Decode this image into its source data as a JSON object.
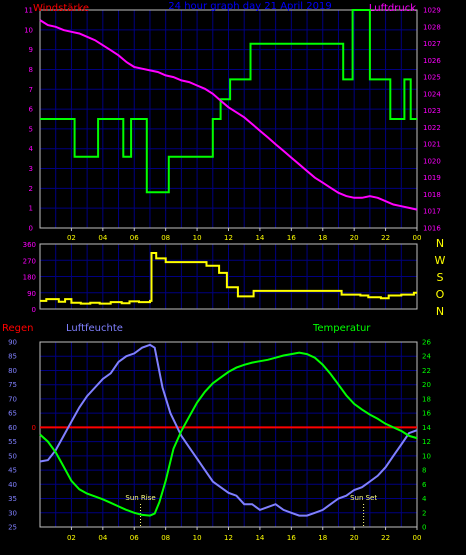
{
  "colors": {
    "background": "#000000",
    "frame": "#c0c0c0",
    "grid": "#000080",
    "wind": "#00ff00",
    "pressure": "#ff00ff",
    "direction": "#ffff00",
    "humidity": "#8080ff",
    "temperature": "#00ff00",
    "rain": "#ff0000",
    "title": "#0000ff",
    "x_ticks": "#ffff00",
    "sun": "#ffff80"
  },
  "chart_data": [
    {
      "type": "line",
      "title": "24 hour graph day  21 April 2019",
      "left_axis_label": "Windstärke",
      "right_axis_label": "Luftdruck",
      "x_ticks": [
        "02",
        "04",
        "06",
        "08",
        "10",
        "12",
        "14",
        "16",
        "18",
        "20",
        "22",
        "00"
      ],
      "y_left_ticks": [
        "0",
        "1",
        "2",
        "3",
        "4",
        "5",
        "6",
        "7",
        "8",
        "9",
        "10",
        "11"
      ],
      "y_right_ticks": [
        "1016",
        "1017",
        "1018",
        "1019",
        "1020",
        "1021",
        "1022",
        "1023",
        "1024",
        "1025",
        "1026",
        "1027",
        "1028",
        "1029"
      ],
      "y_left_range": [
        0,
        11
      ],
      "y_right_range": [
        1016,
        1029
      ],
      "x_range": [
        0,
        24
      ],
      "series": [
        {
          "kind": "step",
          "axis": "left",
          "points": [
            [
              0,
              5.5
            ],
            [
              2.2,
              3.6
            ],
            [
              3.7,
              5.5
            ],
            [
              5.3,
              3.6
            ],
            [
              5.8,
              5.5
            ],
            [
              6.8,
              1.8
            ],
            [
              8.2,
              3.6
            ],
            [
              11.0,
              5.5
            ],
            [
              11.5,
              6.5
            ],
            [
              12.1,
              7.5
            ],
            [
              13.4,
              9.3
            ],
            [
              19.3,
              7.5
            ],
            [
              19.9,
              11.0
            ],
            [
              21.0,
              7.5
            ],
            [
              22.3,
              5.5
            ],
            [
              23.2,
              7.5
            ],
            [
              23.6,
              5.5
            ],
            [
              24,
              5.5
            ]
          ]
        },
        {
          "kind": "line",
          "axis": "right",
          "points": [
            [
              0,
              1028.4
            ],
            [
              0.5,
              1028.1
            ],
            [
              1,
              1028.0
            ],
            [
              1.5,
              1027.8
            ],
            [
              2,
              1027.7
            ],
            [
              2.5,
              1027.6
            ],
            [
              3,
              1027.4
            ],
            [
              3.5,
              1027.2
            ],
            [
              4,
              1026.9
            ],
            [
              4.5,
              1026.6
            ],
            [
              5,
              1026.3
            ],
            [
              5.5,
              1025.9
            ],
            [
              6,
              1025.6
            ],
            [
              6.5,
              1025.5
            ],
            [
              7,
              1025.4
            ],
            [
              7.5,
              1025.3
            ],
            [
              8,
              1025.1
            ],
            [
              8.5,
              1025.0
            ],
            [
              9,
              1024.8
            ],
            [
              9.5,
              1024.7
            ],
            [
              10,
              1024.5
            ],
            [
              10.5,
              1024.3
            ],
            [
              11,
              1024.0
            ],
            [
              11.5,
              1023.6
            ],
            [
              12,
              1023.2
            ],
            [
              12.5,
              1022.9
            ],
            [
              13,
              1022.6
            ],
            [
              13.5,
              1022.2
            ],
            [
              14,
              1021.8
            ],
            [
              14.5,
              1021.4
            ],
            [
              15,
              1021.0
            ],
            [
              15.5,
              1020.6
            ],
            [
              16,
              1020.2
            ],
            [
              16.5,
              1019.8
            ],
            [
              17,
              1019.4
            ],
            [
              17.5,
              1019.0
            ],
            [
              18,
              1018.7
            ],
            [
              18.5,
              1018.4
            ],
            [
              19,
              1018.1
            ],
            [
              19.5,
              1017.9
            ],
            [
              20,
              1017.8
            ],
            [
              20.5,
              1017.8
            ],
            [
              21,
              1017.9
            ],
            [
              21.5,
              1017.8
            ],
            [
              22,
              1017.6
            ],
            [
              22.5,
              1017.4
            ],
            [
              23,
              1017.3
            ],
            [
              23.5,
              1017.2
            ],
            [
              24,
              1017.1
            ]
          ]
        }
      ]
    },
    {
      "type": "line",
      "title": "",
      "y_left_ticks": [
        "0",
        "90",
        "180",
        "270",
        "360"
      ],
      "y_range": [
        0,
        360
      ],
      "x_range": [
        0,
        24
      ],
      "right_labels": [
        "N",
        "W",
        "S",
        "O",
        "N"
      ],
      "series": [
        {
          "kind": "step",
          "axis": "left",
          "points": [
            [
              0,
              45
            ],
            [
              0.4,
              55
            ],
            [
              1.2,
              40
            ],
            [
              1.6,
              55
            ],
            [
              2.0,
              35
            ],
            [
              2.6,
              30
            ],
            [
              3.2,
              35
            ],
            [
              3.8,
              30
            ],
            [
              4.5,
              38
            ],
            [
              5.2,
              32
            ],
            [
              5.7,
              42
            ],
            [
              6.3,
              38
            ],
            [
              7.0,
              45
            ],
            [
              7.1,
              310
            ],
            [
              7.4,
              280
            ],
            [
              8.0,
              260
            ],
            [
              10.6,
              240
            ],
            [
              11.4,
              200
            ],
            [
              11.9,
              120
            ],
            [
              12.6,
              70
            ],
            [
              13.6,
              100
            ],
            [
              19.2,
              80
            ],
            [
              20.4,
              75
            ],
            [
              20.9,
              65
            ],
            [
              21.7,
              60
            ],
            [
              22.2,
              75
            ],
            [
              23.0,
              80
            ],
            [
              23.8,
              90
            ],
            [
              24,
              90
            ]
          ]
        }
      ]
    },
    {
      "type": "line",
      "title": "",
      "left_axis_label": "Regen",
      "mid_axis_label": "Luftfeuchte",
      "right_axis_label": "Temperatur",
      "x_ticks": [
        "02",
        "04",
        "06",
        "08",
        "10",
        "12",
        "14",
        "16",
        "18",
        "20",
        "22",
        "00"
      ],
      "y_hum_ticks": [
        "25",
        "30",
        "35",
        "40",
        "45",
        "50",
        "55",
        "60",
        "65",
        "70",
        "75",
        "80",
        "85",
        "90"
      ],
      "y_temp_ticks": [
        "0",
        "2",
        "4",
        "6",
        "8",
        "10",
        "12",
        "14",
        "16",
        "18",
        "20",
        "22",
        "24",
        "26"
      ],
      "rain_tick": "0",
      "hum_range": [
        25,
        90
      ],
      "temp_range": [
        0,
        26
      ],
      "rain_level": 14,
      "x_range": [
        0,
        24
      ],
      "annotations": [
        {
          "text": "Sun Rise",
          "x": 6.4
        },
        {
          "text": "Sun Set",
          "x": 20.6
        }
      ],
      "series": [
        {
          "name": "Luftfeuchte",
          "axis": "humidity",
          "points": [
            [
              0,
              48
            ],
            [
              0.5,
              48.5
            ],
            [
              1,
              52
            ],
            [
              1.5,
              57
            ],
            [
              2,
              62
            ],
            [
              2.5,
              67
            ],
            [
              3,
              71
            ],
            [
              3.5,
              74
            ],
            [
              4,
              77
            ],
            [
              4.5,
              79
            ],
            [
              5,
              83
            ],
            [
              5.5,
              85
            ],
            [
              6,
              86
            ],
            [
              6.5,
              88
            ],
            [
              7,
              89
            ],
            [
              7.3,
              88
            ],
            [
              7.8,
              74
            ],
            [
              8.3,
              65
            ],
            [
              9,
              57
            ],
            [
              9.5,
              53
            ],
            [
              10,
              49
            ],
            [
              10.5,
              45
            ],
            [
              11,
              41
            ],
            [
              11.5,
              39
            ],
            [
              12,
              37
            ],
            [
              12.5,
              36
            ],
            [
              13,
              33
            ],
            [
              13.5,
              33
            ],
            [
              14,
              31
            ],
            [
              14.5,
              32
            ],
            [
              15,
              33
            ],
            [
              15.5,
              31
            ],
            [
              16,
              30
            ],
            [
              16.5,
              29
            ],
            [
              17,
              29
            ],
            [
              17.5,
              30
            ],
            [
              18,
              31
            ],
            [
              18.5,
              33
            ],
            [
              19,
              35
            ],
            [
              19.5,
              36
            ],
            [
              20,
              38
            ],
            [
              20.5,
              39
            ],
            [
              21,
              41
            ],
            [
              21.5,
              43
            ],
            [
              22,
              46
            ],
            [
              22.5,
              50
            ],
            [
              23,
              54
            ],
            [
              23.5,
              58
            ],
            [
              24,
              59
            ]
          ]
        },
        {
          "name": "Temperatur",
          "axis": "temperature",
          "points": [
            [
              0,
              13
            ],
            [
              0.5,
              12
            ],
            [
              1,
              10.5
            ],
            [
              1.5,
              8.5
            ],
            [
              2,
              6.5
            ],
            [
              2.5,
              5.3
            ],
            [
              3,
              4.7
            ],
            [
              3.5,
              4.3
            ],
            [
              4,
              3.9
            ],
            [
              4.5,
              3.4
            ],
            [
              5,
              2.9
            ],
            [
              5.5,
              2.4
            ],
            [
              6,
              2.0
            ],
            [
              6.5,
              1.7
            ],
            [
              7,
              1.6
            ],
            [
              7.3,
              1.9
            ],
            [
              7.6,
              3.5
            ],
            [
              8,
              6.5
            ],
            [
              8.5,
              11
            ],
            [
              9,
              13.5
            ],
            [
              9.5,
              15.5
            ],
            [
              10,
              17.5
            ],
            [
              10.5,
              19
            ],
            [
              11,
              20.2
            ],
            [
              11.5,
              21
            ],
            [
              12,
              21.8
            ],
            [
              12.5,
              22.4
            ],
            [
              13,
              22.8
            ],
            [
              13.5,
              23.1
            ],
            [
              14,
              23.3
            ],
            [
              14.5,
              23.5
            ],
            [
              15,
              23.8
            ],
            [
              15.5,
              24.1
            ],
            [
              16,
              24.3
            ],
            [
              16.5,
              24.5
            ],
            [
              17,
              24.3
            ],
            [
              17.5,
              23.8
            ],
            [
              18,
              22.8
            ],
            [
              18.5,
              21.5
            ],
            [
              19,
              20.0
            ],
            [
              19.5,
              18.5
            ],
            [
              20,
              17.3
            ],
            [
              20.5,
              16.5
            ],
            [
              21,
              15.8
            ],
            [
              21.5,
              15.2
            ],
            [
              22,
              14.5
            ],
            [
              22.5,
              14.0
            ],
            [
              23,
              13.5
            ],
            [
              23.5,
              12.8
            ],
            [
              24,
              12.5
            ]
          ]
        }
      ]
    }
  ]
}
